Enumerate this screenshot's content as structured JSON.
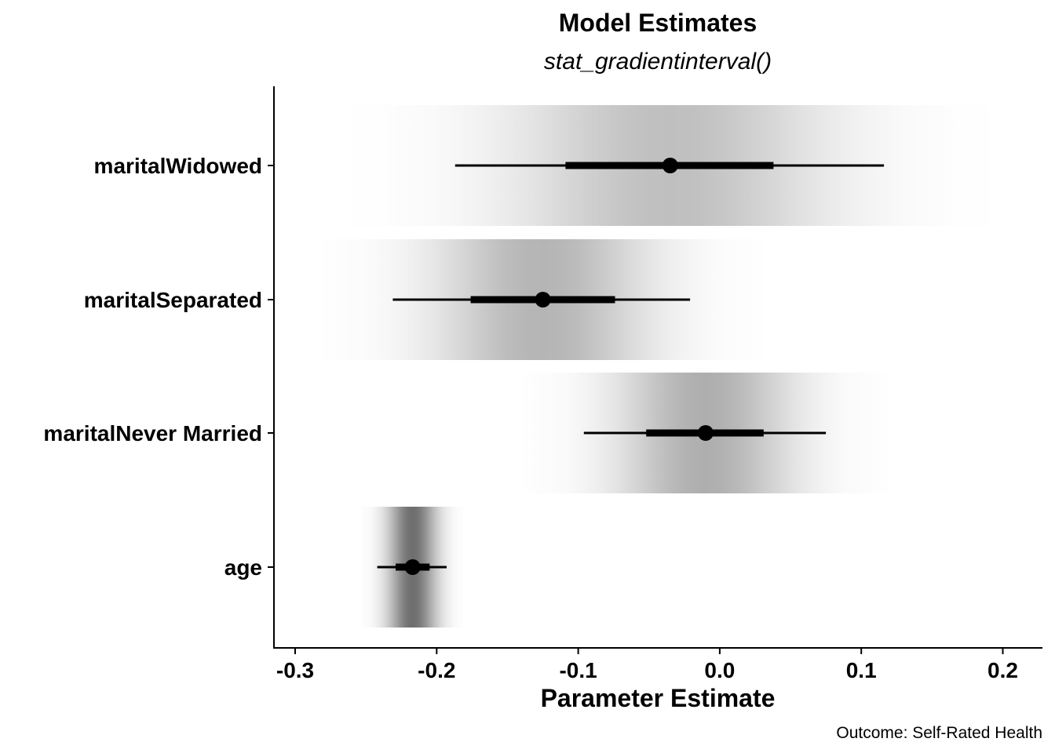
{
  "chart_data": {
    "type": "gradient-interval",
    "title": "Model Estimates",
    "subtitle": "stat_gradientinterval()",
    "xlabel": "Parameter Estimate",
    "ylabel": "",
    "caption": "Outcome: Self-Rated Health",
    "xlim": [
      -0.315,
      0.228
    ],
    "xticks": [
      {
        "value": -0.3,
        "label": "-0.3"
      },
      {
        "value": -0.2,
        "label": "-0.2"
      },
      {
        "value": -0.1,
        "label": "-0.1"
      },
      {
        "value": 0.0,
        "label": "0.0"
      },
      {
        "value": 0.1,
        "label": "0.1"
      },
      {
        "value": 0.2,
        "label": "0.2"
      }
    ],
    "grid": false,
    "legend": "none",
    "categories": [
      "maritalWidowed",
      "maritalSeparated",
      "maritalNever Married",
      "age"
    ],
    "series": [
      {
        "term": "maritalWidowed",
        "estimate": -0.035,
        "sd": 0.075,
        "ci66": [
          -0.109,
          0.038
        ],
        "ci95": [
          -0.187,
          0.116
        ]
      },
      {
        "term": "maritalSeparated",
        "estimate": -0.125,
        "sd": 0.052,
        "ci66": [
          -0.176,
          -0.074
        ],
        "ci95": [
          -0.231,
          -0.021
        ]
      },
      {
        "term": "maritalNever Married",
        "estimate": -0.01,
        "sd": 0.043,
        "ci66": [
          -0.052,
          0.031
        ],
        "ci95": [
          -0.096,
          0.075
        ]
      },
      {
        "term": "age",
        "estimate": -0.217,
        "sd": 0.012,
        "ci66": [
          -0.229,
          -0.205
        ],
        "ci95": [
          -0.242,
          -0.193
        ]
      }
    ],
    "colors": {
      "ink": "#000000",
      "gradient_peak": "#6e6e6e",
      "background": "#ffffff"
    }
  }
}
